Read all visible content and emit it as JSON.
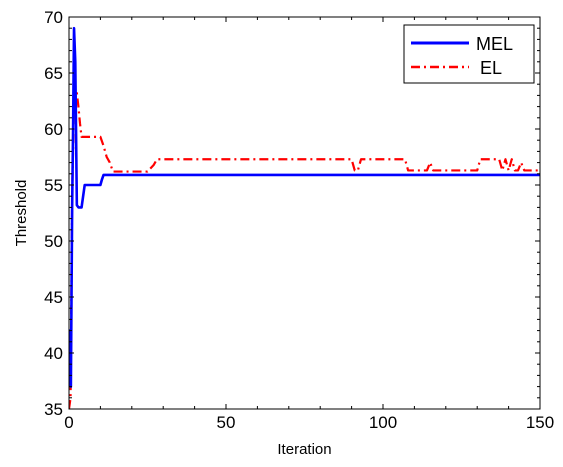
{
  "chart_data": {
    "type": "line",
    "title": "",
    "xlabel": "Iteration",
    "ylabel": "Threshold",
    "xlim": [
      0,
      150
    ],
    "ylim": [
      35,
      70
    ],
    "xticks": [
      0,
      50,
      100,
      150
    ],
    "yticks": [
      35,
      40,
      45,
      50,
      55,
      60,
      65,
      70
    ],
    "grid": false,
    "legend_position": "top-right",
    "series": [
      {
        "name": "MEL",
        "color": "#0000ff",
        "line_style": "solid",
        "x": [
          0,
          0.3,
          0.6,
          1,
          1.3,
          1.6,
          2,
          2.5,
          3,
          3.5,
          4,
          4.5,
          5,
          6,
          7,
          8,
          9,
          10,
          10.5,
          11,
          12,
          20,
          40,
          60,
          80,
          100,
          120,
          140,
          150
        ],
        "y": [
          37,
          42,
          37,
          53,
          60,
          69,
          66,
          53.2,
          53,
          53,
          53,
          54,
          55,
          55,
          55,
          55,
          55,
          55,
          55.5,
          55.9,
          55.9,
          55.9,
          55.9,
          55.9,
          55.9,
          55.9,
          55.9,
          55.9,
          55.9
        ]
      },
      {
        "name": "EL",
        "color": "#ff0000",
        "line_style": "dash-dot",
        "x": [
          0,
          0.5,
          1,
          1.5,
          2,
          2.5,
          3,
          3.5,
          4,
          5,
          6,
          7,
          8,
          9,
          10,
          11,
          12,
          13,
          14,
          15,
          16,
          20,
          25,
          27,
          28,
          30,
          40,
          60,
          80,
          90,
          91,
          92,
          93,
          95,
          100,
          105,
          107,
          108,
          110,
          114,
          115,
          116,
          118,
          120,
          125,
          130,
          131,
          133,
          135,
          137,
          138,
          139,
          140,
          141,
          142,
          143,
          144,
          145,
          147,
          150
        ],
        "y": [
          35,
          36,
          54,
          61,
          63.2,
          63.2,
          62,
          60.5,
          59.3,
          59.3,
          59.3,
          59.3,
          59.3,
          59.3,
          59.3,
          58.5,
          57.5,
          57,
          56.2,
          56.2,
          56.2,
          56.2,
          56.2,
          56.8,
          57.3,
          57.3,
          57.3,
          57.3,
          57.3,
          57.3,
          56.3,
          56.3,
          57.3,
          57.3,
          57.3,
          57.3,
          57.3,
          56.3,
          56.3,
          56.3,
          57,
          56.3,
          56.3,
          56.3,
          56.3,
          56.3,
          57.3,
          57.3,
          57.3,
          57.3,
          56.3,
          57.3,
          56.3,
          57.3,
          56.3,
          56.3,
          57,
          56.3,
          56.3,
          56.3
        ]
      }
    ]
  }
}
